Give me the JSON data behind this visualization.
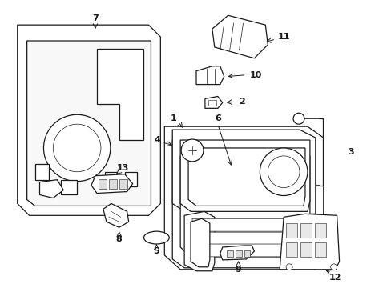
{
  "bg_color": "#ffffff",
  "line_color": "#1a1a1a",
  "lw": 0.9,
  "figsize": [
    4.89,
    3.6
  ],
  "dpi": 100
}
